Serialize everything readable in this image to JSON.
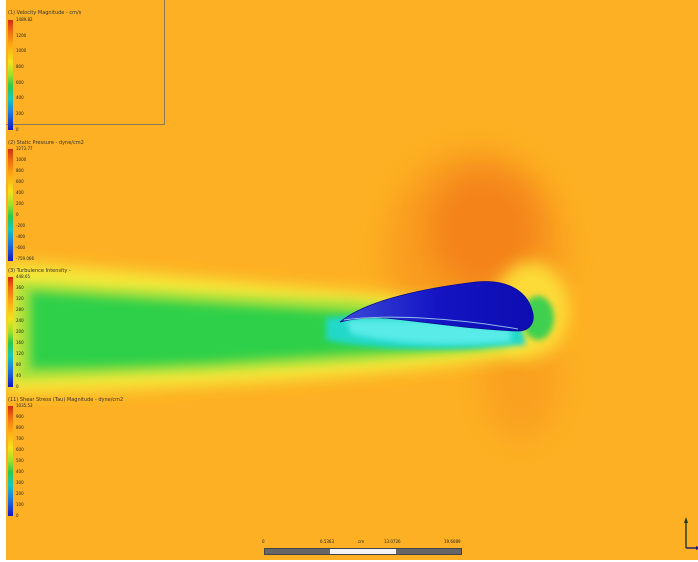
{
  "legends": [
    {
      "title": "(1) Velocity Magnitude - cm/s",
      "ticks": [
        "1489.82",
        "1200",
        "1000",
        "800",
        "600",
        "400",
        "200",
        "0"
      ]
    },
    {
      "title": "(2) Static Pressure - dyne/cm2",
      "ticks": [
        "1273.77",
        "1000",
        "800",
        "600",
        "400",
        "200",
        "0",
        "-200",
        "-400",
        "-600",
        "-759.066"
      ]
    },
    {
      "title": "(3) Turbulence Intensity -",
      "ticks": [
        "448.65",
        "360",
        "320",
        "280",
        "240",
        "200",
        "160",
        "120",
        "80",
        "40",
        "0"
      ]
    },
    {
      "title": "(11) Shear Stress (Tau) Magnitude - dyne/cm2",
      "ticks": [
        "1035.53",
        "900",
        "800",
        "700",
        "600",
        "500",
        "400",
        "300",
        "200",
        "100",
        "0"
      ]
    }
  ],
  "scale_bar": {
    "labels": [
      "0",
      "6.5363",
      "cm",
      "13.0726",
      "19.6089"
    ]
  },
  "colors": {
    "background": "#fdb023",
    "wake_green": "#30d040",
    "airfoil": "#1010c0"
  }
}
